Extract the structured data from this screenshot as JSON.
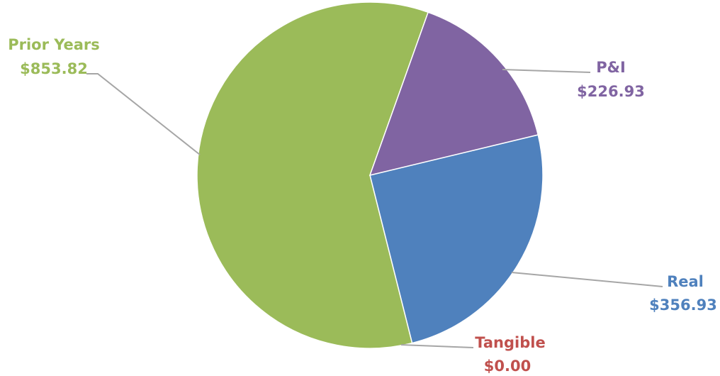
{
  "chart_data": {
    "type": "pie",
    "slices": [
      {
        "label": "Real",
        "value": 356.93,
        "value_label": "$356.93",
        "color": "#4f81bd"
      },
      {
        "label": "Tangible",
        "value": 0.0,
        "value_label": "$0.00",
        "color": "#c0504d"
      },
      {
        "label": "Prior Years",
        "value": 853.82,
        "value_label": "$853.82",
        "color": "#9bbb59"
      },
      {
        "label": "P&I",
        "value": 226.93,
        "value_label": "$226.93",
        "color": "#8064a2"
      }
    ],
    "title": "",
    "legend": "none",
    "data_labels": "outside with leader lines"
  }
}
